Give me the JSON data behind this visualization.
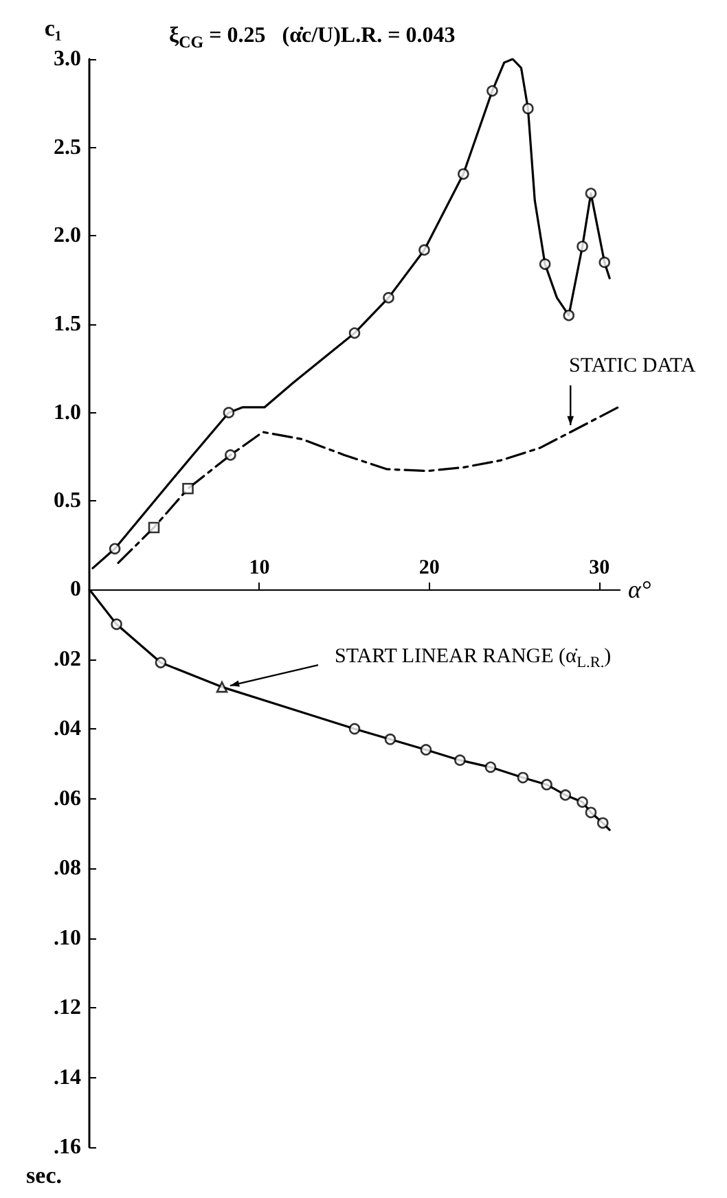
{
  "chart_data": [
    {
      "type": "line",
      "title": "ξ$_{CG}$ = 0.25   (α̇c/U)L.R. = 0.043",
      "xlabel": "α°",
      "ylabel": "c₁",
      "xlim": [
        0,
        31.2
      ],
      "xticks": [
        10,
        20,
        30
      ],
      "ylim": [
        0,
        3.0
      ],
      "yticks": [
        0,
        0.5,
        {
          "value": 1,
          "label": "1.0"
        },
        1.5,
        {
          "value": 2,
          "label": "2.0"
        },
        2.5,
        {
          "value": 3,
          "label": "3.0"
        }
      ],
      "series": [
        {
          "color": "#000000",
          "line_style": "solid",
          "marker": "none",
          "x": [
            0.2,
            1.5,
            4,
            6,
            8.2,
            9,
            10.3,
            12,
            15.6,
            17.6,
            19.7,
            22,
            23.7,
            24.4,
            24.9,
            25.4,
            25.8,
            26.2,
            26.8,
            27.5,
            28.2,
            29.0,
            29.5,
            30.3,
            30.6
          ],
          "values": [
            0.12,
            0.23,
            0.52,
            0.75,
            1.0,
            1.03,
            1.03,
            1.17,
            1.45,
            1.65,
            1.92,
            2.35,
            2.82,
            2.98,
            3.0,
            2.95,
            2.72,
            2.2,
            1.84,
            1.65,
            1.55,
            1.94,
            2.24,
            1.85,
            1.76
          ]
        },
        {
          "color": "#000000",
          "line_style": "dashed",
          "marker": "none",
          "x": [
            1.7,
            3.8,
            5.8,
            8.3,
            10.2,
            12.5,
            15,
            17.5,
            19.9,
            22,
            24.2,
            26.5,
            28.3,
            31.1
          ],
          "values": [
            0.15,
            0.35,
            0.57,
            0.76,
            0.89,
            0.85,
            0.76,
            0.68,
            0.67,
            0.69,
            0.73,
            0.8,
            0.89,
            1.03
          ]
        },
        {
          "type": "scatter",
          "color": "#000000",
          "marker": "circle",
          "x": [
            1.5,
            8.2,
            15.6,
            17.6,
            19.7,
            22,
            23.7,
            25.8,
            26.8,
            28.2,
            29.0,
            29.5,
            30.3,
            8.3
          ],
          "values": [
            0.23,
            1.0,
            1.45,
            1.65,
            1.92,
            2.35,
            2.82,
            2.72,
            1.84,
            1.55,
            1.94,
            2.24,
            1.85,
            0.76
          ]
        },
        {
          "type": "scatter",
          "color": "#000000",
          "marker": "square",
          "x": [
            3.8,
            5.8
          ],
          "values": [
            0.35,
            0.57
          ]
        }
      ],
      "annotations": [
        {
          "text": "STATIC DATA",
          "x": 28.3,
          "y": 0.89
        }
      ]
    },
    {
      "type": "line",
      "ylabel": "sec.",
      "xlim": [
        0,
        31.2
      ],
      "ylim": [
        0.16,
        0
      ],
      "tick_labels": "y",
      "yticks": [
        {
          "value": 0.02,
          "label": ".02"
        },
        {
          "value": 0.04,
          "label": ".04"
        },
        {
          "value": 0.06,
          "label": ".06"
        },
        {
          "value": 0.08,
          "label": ".08"
        },
        {
          "value": 0.1,
          "label": ".10"
        },
        {
          "value": 0.12,
          "label": ".12"
        },
        {
          "value": 0.14,
          "label": ".14"
        },
        {
          "value": 0.16,
          "label": ".16"
        }
      ],
      "series": [
        {
          "color": "#000000",
          "line_style": "solid",
          "marker": "none",
          "x": [
            0,
            1.6,
            4.2,
            7.8,
            15.6,
            17.7,
            19.8,
            21.8,
            23.6,
            25.5,
            26.9,
            28.0,
            29.0,
            29.5,
            30.2,
            30.6
          ],
          "values": [
            0,
            0.01,
            0.021,
            0.028,
            0.04,
            0.043,
            0.046,
            0.049,
            0.051,
            0.054,
            0.056,
            0.059,
            0.061,
            0.064,
            0.067,
            0.069
          ]
        },
        {
          "type": "scatter",
          "color": "#000000",
          "marker": "circle",
          "x": [
            1.6,
            4.2,
            15.6,
            17.7,
            19.8,
            21.8,
            23.6,
            25.5,
            26.9,
            28.0,
            29.0,
            29.5,
            30.2
          ],
          "values": [
            0.01,
            0.021,
            0.04,
            0.043,
            0.046,
            0.049,
            0.051,
            0.054,
            0.056,
            0.059,
            0.061,
            0.064,
            0.067
          ]
        },
        {
          "type": "scatter",
          "color": "#000000",
          "marker": "triangle",
          "x": [
            7.8
          ],
          "values": [
            0.028
          ]
        }
      ],
      "annotations": [
        {
          "text": "START LINEAR RANGE (α̇$_{L.R.}$)",
          "x": 7.8,
          "y": 0.028
        }
      ]
    }
  ]
}
